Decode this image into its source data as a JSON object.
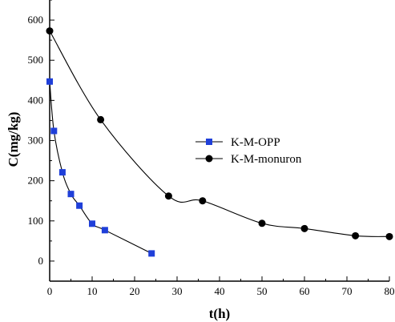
{
  "chart_data": {
    "type": "scatter",
    "xlabel": "t(h)",
    "ylabel": "C(mg/kg)",
    "xlim": [
      0,
      80
    ],
    "ylim": [
      -50,
      650
    ],
    "xticks": [
      0,
      10,
      20,
      30,
      40,
      50,
      60,
      70,
      80
    ],
    "yticks": [
      0,
      100,
      200,
      300,
      400,
      500,
      600
    ],
    "grid": false,
    "legend_position": "center-right",
    "series": [
      {
        "name": "K-M-OPP",
        "marker": "square",
        "color": "#1f3fd9",
        "x": [
          0,
          1,
          3,
          5,
          7,
          10,
          13,
          24
        ],
        "y": [
          447,
          324,
          221,
          167,
          138,
          93,
          77,
          19
        ]
      },
      {
        "name": "K-M-monuron",
        "marker": "circle",
        "color": "#000000",
        "x": [
          0,
          12,
          28,
          36,
          50,
          60,
          72,
          80
        ],
        "y": [
          573,
          352,
          162,
          150,
          94,
          81,
          63,
          61
        ]
      }
    ]
  }
}
